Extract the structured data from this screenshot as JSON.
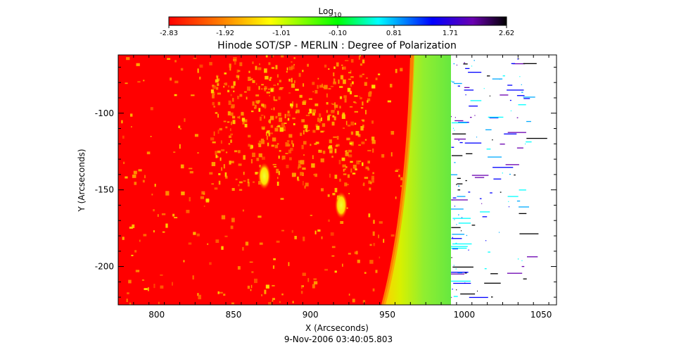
{
  "chart_data": {
    "type": "heatmap",
    "title": "Hinode SOT/SP - MERLIN : Degree of Polarization",
    "subtitle": "9-Nov-2006 03:40:05.803",
    "xlabel": "X (Arcseconds)",
    "ylabel": "Y (Arcseconds)",
    "x_ticks": [
      800,
      850,
      900,
      950,
      1000,
      1050
    ],
    "y_ticks": [
      -100,
      -150,
      -200
    ],
    "xlim": [
      775,
      1060
    ],
    "ylim": [
      -225,
      -62
    ],
    "colorbar": {
      "title_main": "Log",
      "title_sub": "10",
      "min": -2.83,
      "max": 2.62,
      "tick_labels": [
        "-2.83",
        "-1.92",
        "-1.01",
        "-0.10",
        "0.81",
        "1.71",
        "2.62"
      ],
      "colors": [
        "#ff0000",
        "#ff8000",
        "#ffff00",
        "#00ff00",
        "#00ffff",
        "#0000ff",
        "#6a00b0",
        "#000000"
      ]
    },
    "background_value": -2.83,
    "limb_band_value": -1.0,
    "bright_features": [
      {
        "x": 870,
        "y": -141,
        "value": -1.5
      },
      {
        "x": 920,
        "y": -160,
        "value": -1.2
      }
    ]
  }
}
